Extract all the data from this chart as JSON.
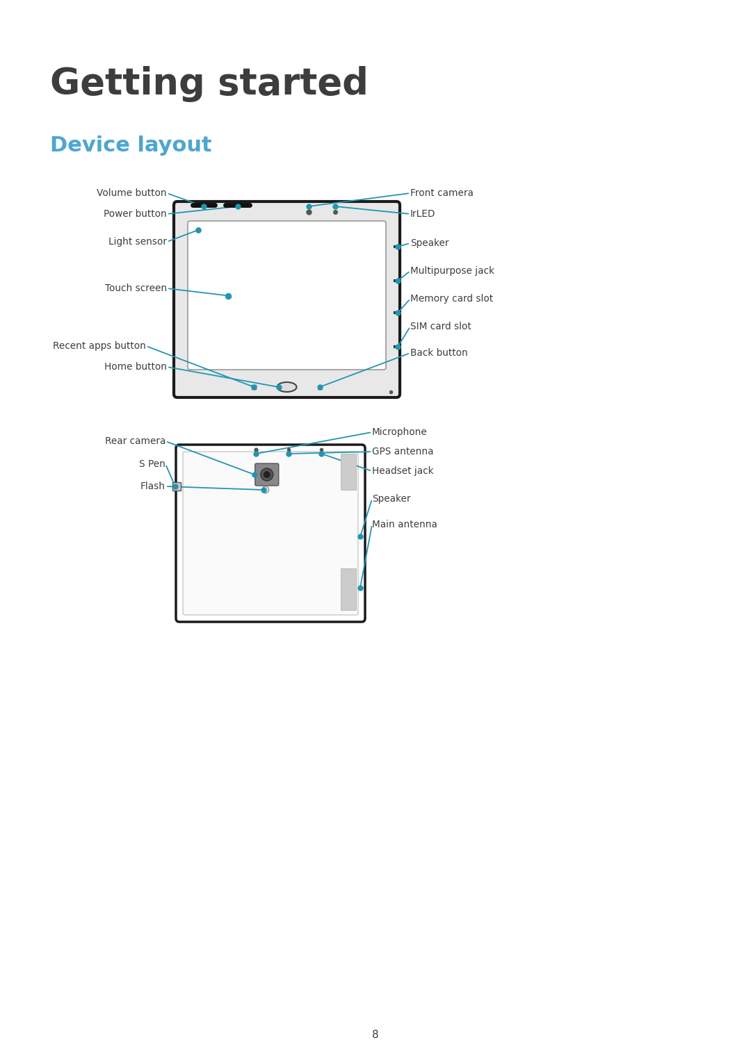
{
  "title": "Getting started",
  "subtitle": "Device layout",
  "title_color": "#3d3d3d",
  "subtitle_color": "#4da6d0",
  "line_color": "#2196b0",
  "dot_color": "#2196b0",
  "text_color": "#3d3d3d",
  "bg_color": "#ffffff",
  "page_number": "8",
  "label_fontsize": 9.8,
  "title_fontsize": 38,
  "subtitle_fontsize": 22
}
